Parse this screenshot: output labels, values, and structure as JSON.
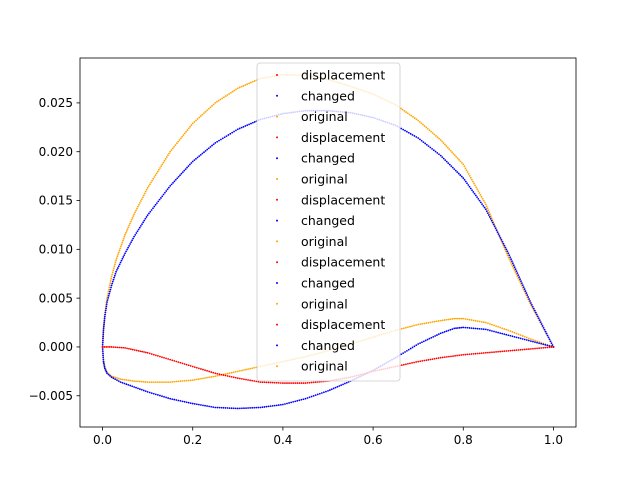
{
  "chart_data": {
    "type": "scatter",
    "title": "",
    "xlabel": "",
    "ylabel": "",
    "xlim": [
      -0.05,
      1.05
    ],
    "ylim": [
      -0.0082,
      0.0296
    ],
    "xticks": [
      0.0,
      0.2,
      0.4,
      0.6,
      0.8,
      1.0
    ],
    "xtick_labels": [
      "0.0",
      "0.2",
      "0.4",
      "0.6",
      "0.8",
      "1.0"
    ],
    "yticks": [
      -0.005,
      0.0,
      0.005,
      0.01,
      0.015,
      0.02,
      0.025
    ],
    "ytick_labels": [
      "−0.005",
      "0.000",
      "0.005",
      "0.010",
      "0.015",
      "0.020",
      "0.025"
    ],
    "grid": false,
    "legend_position": "top-center",
    "colors": {
      "displacement": "#ff0000",
      "changed": "#0000ff",
      "original": "#ffa500"
    },
    "legend_entries": [
      {
        "label": "displacement",
        "series": "displacement"
      },
      {
        "label": "changed",
        "series": "changed"
      },
      {
        "label": "original",
        "series": "original"
      },
      {
        "label": "displacement",
        "series": "displacement"
      },
      {
        "label": "changed",
        "series": "changed"
      },
      {
        "label": "original",
        "series": "original"
      },
      {
        "label": "displacement",
        "series": "displacement"
      },
      {
        "label": "changed",
        "series": "changed"
      },
      {
        "label": "original",
        "series": "original"
      },
      {
        "label": "displacement",
        "series": "displacement"
      },
      {
        "label": "changed",
        "series": "changed"
      },
      {
        "label": "original",
        "series": "original"
      },
      {
        "label": "displacement",
        "series": "displacement"
      },
      {
        "label": "changed",
        "series": "changed"
      },
      {
        "label": "original",
        "series": "original"
      }
    ],
    "series": [
      {
        "name": "original",
        "color": "#ffa500",
        "points": [
          [
            1.0,
            0.0
          ],
          [
            0.95,
            0.0043
          ],
          [
            0.9,
            0.0092
          ],
          [
            0.85,
            0.0146
          ],
          [
            0.8,
            0.0187
          ],
          [
            0.75,
            0.0212
          ],
          [
            0.7,
            0.0232
          ],
          [
            0.65,
            0.0248
          ],
          [
            0.6,
            0.0259
          ],
          [
            0.55,
            0.0267
          ],
          [
            0.5,
            0.0274
          ],
          [
            0.45,
            0.0278
          ],
          [
            0.4,
            0.0279
          ],
          [
            0.35,
            0.0275
          ],
          [
            0.3,
            0.0265
          ],
          [
            0.25,
            0.025
          ],
          [
            0.2,
            0.0229
          ],
          [
            0.15,
            0.02
          ],
          [
            0.1,
            0.0163
          ],
          [
            0.07,
            0.0136
          ],
          [
            0.05,
            0.0115
          ],
          [
            0.03,
            0.0089
          ],
          [
            0.02,
            0.0072
          ],
          [
            0.01,
            0.005
          ],
          [
            0.005,
            0.0033
          ],
          [
            0.002,
            0.0018
          ],
          [
            0.0,
            0.0
          ],
          [
            0.002,
            -0.0013
          ],
          [
            0.005,
            -0.002
          ],
          [
            0.01,
            -0.0026
          ],
          [
            0.02,
            -0.003
          ],
          [
            0.04,
            -0.0033
          ],
          [
            0.07,
            -0.0035
          ],
          [
            0.1,
            -0.0036
          ],
          [
            0.15,
            -0.0036
          ],
          [
            0.2,
            -0.0034
          ],
          [
            0.25,
            -0.003
          ],
          [
            0.3,
            -0.0025
          ],
          [
            0.35,
            -0.002
          ],
          [
            0.4,
            -0.0015
          ],
          [
            0.45,
            -0.001
          ],
          [
            0.5,
            -0.0004
          ],
          [
            0.55,
            0.0003
          ],
          [
            0.6,
            0.001
          ],
          [
            0.65,
            0.0017
          ],
          [
            0.7,
            0.0023
          ],
          [
            0.75,
            0.0027
          ],
          [
            0.78,
            0.0029
          ],
          [
            0.8,
            0.0029
          ],
          [
            0.85,
            0.0025
          ],
          [
            0.9,
            0.0017
          ],
          [
            0.95,
            0.0008
          ],
          [
            1.0,
            0.0
          ]
        ]
      },
      {
        "name": "changed",
        "color": "#0000ff",
        "points": [
          [
            1.0,
            0.0
          ],
          [
            0.95,
            0.0045
          ],
          [
            0.9,
            0.0096
          ],
          [
            0.85,
            0.0141
          ],
          [
            0.8,
            0.0173
          ],
          [
            0.75,
            0.0196
          ],
          [
            0.7,
            0.0214
          ],
          [
            0.65,
            0.0227
          ],
          [
            0.6,
            0.0235
          ],
          [
            0.55,
            0.024
          ],
          [
            0.5,
            0.0242
          ],
          [
            0.45,
            0.0242
          ],
          [
            0.4,
            0.0239
          ],
          [
            0.35,
            0.0233
          ],
          [
            0.3,
            0.0223
          ],
          [
            0.25,
            0.0209
          ],
          [
            0.2,
            0.019
          ],
          [
            0.15,
            0.0165
          ],
          [
            0.1,
            0.0135
          ],
          [
            0.07,
            0.0113
          ],
          [
            0.05,
            0.0096
          ],
          [
            0.03,
            0.0077
          ],
          [
            0.02,
            0.0063
          ],
          [
            0.01,
            0.0046
          ],
          [
            0.005,
            0.0031
          ],
          [
            0.002,
            0.0017
          ],
          [
            0.0,
            0.0
          ],
          [
            0.002,
            -0.0015
          ],
          [
            0.005,
            -0.0022
          ],
          [
            0.01,
            -0.0027
          ],
          [
            0.02,
            -0.0031
          ],
          [
            0.04,
            -0.0036
          ],
          [
            0.07,
            -0.0041
          ],
          [
            0.1,
            -0.0046
          ],
          [
            0.15,
            -0.0053
          ],
          [
            0.2,
            -0.0058
          ],
          [
            0.25,
            -0.0062
          ],
          [
            0.3,
            -0.0063
          ],
          [
            0.35,
            -0.0062
          ],
          [
            0.4,
            -0.0059
          ],
          [
            0.45,
            -0.0053
          ],
          [
            0.5,
            -0.0045
          ],
          [
            0.55,
            -0.0035
          ],
          [
            0.6,
            -0.0024
          ],
          [
            0.65,
            -0.0011
          ],
          [
            0.7,
            0.0003
          ],
          [
            0.75,
            0.0014
          ],
          [
            0.78,
            0.0019
          ],
          [
            0.8,
            0.002
          ],
          [
            0.85,
            0.0018
          ],
          [
            0.9,
            0.0012
          ],
          [
            0.95,
            0.0006
          ],
          [
            1.0,
            0.0
          ]
        ]
      },
      {
        "name": "displacement",
        "color": "#ff0000",
        "points": [
          [
            0.0,
            0.0
          ],
          [
            0.02,
            0.0
          ],
          [
            0.05,
            -0.0001
          ],
          [
            0.08,
            -0.0004
          ],
          [
            0.1,
            -0.0006
          ],
          [
            0.15,
            -0.0013
          ],
          [
            0.2,
            -0.002
          ],
          [
            0.25,
            -0.0027
          ],
          [
            0.3,
            -0.0032
          ],
          [
            0.35,
            -0.0036
          ],
          [
            0.4,
            -0.0037
          ],
          [
            0.45,
            -0.0037
          ],
          [
            0.5,
            -0.0035
          ],
          [
            0.55,
            -0.0031
          ],
          [
            0.6,
            -0.0025
          ],
          [
            0.65,
            -0.002
          ],
          [
            0.7,
            -0.0015
          ],
          [
            0.75,
            -0.0011
          ],
          [
            0.8,
            -0.0008
          ],
          [
            0.85,
            -0.0006
          ],
          [
            0.9,
            -0.0004
          ],
          [
            0.95,
            -0.0002
          ],
          [
            1.0,
            0.0
          ]
        ]
      }
    ]
  }
}
